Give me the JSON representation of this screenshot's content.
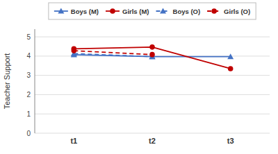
{
  "chart_data": {
    "type": "line",
    "categories": [
      "t1",
      "t2",
      "t3"
    ],
    "series": [
      {
        "name": "Boys (M)",
        "color": "#4472C4",
        "values": [
          4.07,
          3.97,
          3.97
        ],
        "marker": "triangle",
        "line_style": "solid"
      },
      {
        "name": "Girls (M)",
        "color": "#C00000",
        "values": [
          4.38,
          4.47,
          3.35
        ],
        "marker": "circle",
        "line_style": "solid"
      },
      {
        "name": "Boys (O)",
        "color": "#4472C4",
        "values": [
          4.13,
          3.97,
          null
        ],
        "marker": "triangle",
        "line_style": "dashed"
      },
      {
        "name": "Girls (O)",
        "color": "#C00000",
        "values": [
          4.28,
          4.08,
          null
        ],
        "marker": "circle",
        "line_style": "dashed"
      }
    ],
    "ylabel": "Teacher Support",
    "ylim": [
      0,
      5.4
    ],
    "yticks": [
      0,
      1,
      2,
      3,
      4,
      5
    ],
    "grid": true,
    "legend": "top"
  }
}
